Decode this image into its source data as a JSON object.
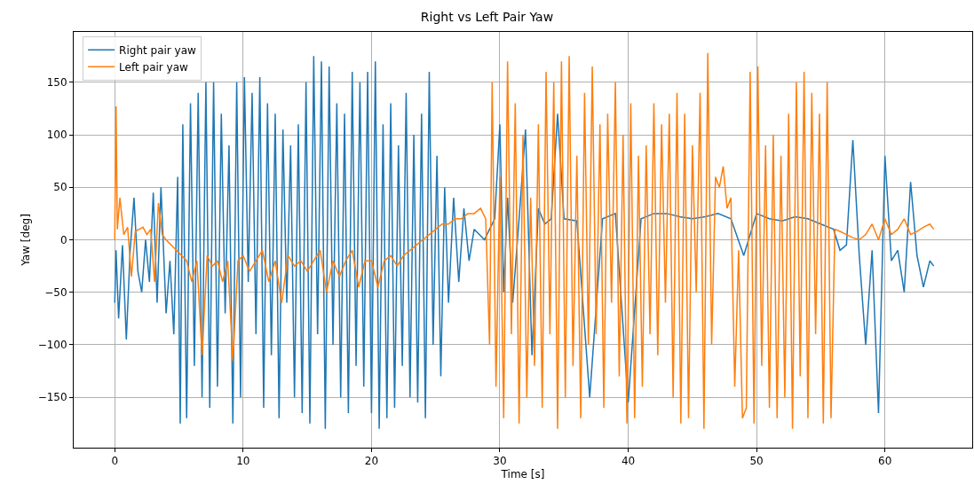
{
  "chart_data": {
    "type": "line",
    "title": "Right vs Left Pair Yaw",
    "xlabel": "Time [s]",
    "ylabel": "Yaw [deg]",
    "xlim": [
      -3.2,
      66.8
    ],
    "xticks": [
      0,
      10,
      20,
      30,
      40,
      50,
      60
    ],
    "ylim": [
      -198,
      198
    ],
    "yticks": [
      {
        "value": -150,
        "label": "−150"
      },
      {
        "value": -100,
        "label": "−100"
      },
      {
        "value": -50,
        "label": "−50"
      },
      0,
      50,
      100,
      150
    ],
    "grid": true,
    "legend": "top left",
    "marker": "none",
    "line_style": "solid",
    "series": [
      {
        "name": "Right pair yaw",
        "color": "#1f77b4",
        "x": [
          0,
          0.1,
          0.3,
          0.6,
          0.9,
          1.2,
          1.5,
          1.8,
          2.1,
          2.4,
          2.7,
          3.0,
          3.3,
          3.6,
          4.0,
          4.3,
          4.6,
          4.9,
          5.1,
          5.3,
          5.6,
          5.9,
          6.2,
          6.5,
          6.8,
          7.1,
          7.4,
          7.7,
          8.0,
          8.3,
          8.6,
          8.9,
          9.2,
          9.5,
          9.8,
          10.1,
          10.4,
          10.7,
          11.0,
          11.3,
          11.6,
          11.9,
          12.2,
          12.5,
          12.8,
          13.1,
          13.4,
          13.7,
          14.0,
          14.3,
          14.6,
          14.9,
          15.2,
          15.5,
          15.8,
          16.1,
          16.4,
          16.7,
          17.0,
          17.3,
          17.6,
          17.9,
          18.2,
          18.5,
          18.8,
          19.1,
          19.4,
          19.7,
          20.0,
          20.3,
          20.6,
          20.9,
          21.2,
          21.5,
          21.8,
          22.1,
          22.4,
          22.7,
          23.0,
          23.3,
          23.6,
          23.9,
          24.2,
          24.5,
          24.8,
          25.1,
          25.4,
          25.7,
          26.0,
          26.4,
          26.8,
          27.2,
          27.6,
          28.0,
          28.4,
          28.8,
          29.2,
          29.6,
          30.0,
          30.3,
          30.6,
          31.0,
          31.5,
          32.0,
          32.5,
          33.0,
          33.5,
          34.0,
          34.5,
          35.0,
          36.0,
          37.0,
          38.0,
          39.0,
          40.0,
          41.0,
          42.0,
          43.0,
          44.0,
          45.0,
          46.0,
          47.0,
          48.0,
          49.0,
          50.0,
          51.0,
          52.0,
          53.0,
          54.0,
          55.0,
          56.0,
          56.5,
          57.0,
          57.5,
          58.0,
          58.5,
          59.0,
          59.5,
          60.0,
          60.5,
          61.0,
          61.5,
          62.0,
          62.5,
          63.0,
          63.5,
          63.8
        ],
        "values": [
          -60,
          -10,
          -75,
          -5,
          -95,
          -10,
          40,
          -30,
          -50,
          0,
          -40,
          45,
          -60,
          50,
          -70,
          -20,
          -90,
          60,
          -175,
          110,
          -170,
          130,
          -120,
          140,
          -150,
          150,
          -160,
          150,
          -140,
          120,
          -70,
          90,
          -175,
          150,
          -150,
          155,
          -40,
          140,
          -90,
          155,
          -160,
          130,
          -110,
          120,
          -170,
          105,
          -60,
          90,
          -150,
          110,
          -165,
          150,
          -175,
          175,
          -90,
          170,
          -180,
          165,
          -100,
          130,
          -150,
          120,
          -165,
          160,
          -120,
          150,
          -140,
          160,
          -165,
          170,
          -180,
          110,
          -170,
          130,
          -160,
          90,
          -120,
          140,
          -150,
          100,
          -155,
          120,
          -170,
          160,
          -100,
          80,
          -130,
          50,
          -60,
          40,
          -40,
          30,
          -20,
          10,
          5,
          0,
          10,
          20,
          110,
          -50,
          40,
          -60,
          20,
          105,
          -110,
          30,
          15,
          20,
          120,
          20,
          18,
          -150,
          20,
          25,
          -155,
          20,
          25,
          25,
          22,
          20,
          22,
          25,
          20,
          -15,
          25,
          20,
          18,
          22,
          20,
          15,
          10,
          -10,
          -5,
          95,
          -15,
          -100,
          -10,
          -165,
          80,
          -20,
          -10,
          -50,
          55,
          -15,
          -45,
          -20,
          -25
        ]
      },
      {
        "name": "Left pair yaw",
        "color": "#ff7f0e",
        "x": [
          0,
          0.1,
          0.2,
          0.4,
          0.7,
          1.0,
          1.3,
          1.6,
          1.9,
          2.2,
          2.5,
          2.8,
          3.1,
          3.4,
          3.7,
          4.0,
          4.4,
          4.8,
          5.2,
          5.6,
          6.0,
          6.4,
          6.8,
          7.2,
          7.6,
          8.0,
          8.4,
          8.8,
          9.2,
          9.6,
          10.0,
          10.5,
          11.0,
          11.5,
          12.0,
          12.5,
          13.0,
          13.5,
          14.0,
          14.5,
          15.0,
          15.5,
          16.0,
          16.5,
          17.0,
          17.5,
          18.0,
          18.5,
          19.0,
          19.5,
          20.0,
          20.5,
          21.0,
          21.5,
          22.0,
          22.5,
          23.0,
          23.5,
          24.0,
          24.5,
          25.0,
          25.5,
          26.0,
          26.5,
          27.0,
          27.5,
          28.0,
          28.5,
          28.9,
          29.2,
          29.4,
          29.7,
          30.0,
          30.3,
          30.6,
          30.9,
          31.2,
          31.5,
          31.8,
          32.1,
          32.4,
          32.7,
          33.0,
          33.3,
          33.6,
          33.9,
          34.2,
          34.5,
          34.8,
          35.1,
          35.4,
          35.7,
          36.0,
          36.3,
          36.6,
          36.9,
          37.2,
          37.5,
          37.8,
          38.1,
          38.4,
          38.7,
          39.0,
          39.3,
          39.6,
          39.9,
          40.2,
          40.5,
          40.8,
          41.1,
          41.4,
          41.7,
          42.0,
          42.3,
          42.6,
          42.9,
          43.2,
          43.5,
          43.8,
          44.1,
          44.4,
          44.7,
          45.0,
          45.3,
          45.6,
          45.9,
          46.2,
          46.5,
          46.8,
          47.1,
          47.4,
          47.7,
          48.0,
          48.3,
          48.6,
          48.9,
          49.2,
          49.5,
          49.8,
          50.1,
          50.4,
          50.7,
          51.0,
          51.3,
          51.6,
          51.9,
          52.2,
          52.5,
          52.8,
          53.1,
          53.4,
          53.7,
          54.0,
          54.3,
          54.6,
          54.9,
          55.2,
          55.5,
          55.8,
          56.1,
          56.5,
          57.0,
          57.5,
          58.0,
          58.5,
          59.0,
          59.5,
          60.0,
          60.5,
          61.0,
          61.5,
          62.0,
          62.5,
          63.0,
          63.5,
          63.8
        ],
        "values": [
          0,
          127,
          10,
          40,
          5,
          12,
          -35,
          8,
          10,
          12,
          5,
          10,
          -40,
          35,
          5,
          0,
          -5,
          -10,
          -15,
          -20,
          -40,
          -20,
          -110,
          -15,
          -25,
          -20,
          -40,
          -20,
          -115,
          -20,
          -15,
          -30,
          -20,
          -10,
          -40,
          -20,
          -60,
          -15,
          -25,
          -20,
          -30,
          -20,
          -10,
          -50,
          -20,
          -35,
          -20,
          -10,
          -45,
          -20,
          -20,
          -45,
          -20,
          -15,
          -25,
          -15,
          -10,
          -5,
          0,
          5,
          10,
          15,
          15,
          20,
          20,
          25,
          25,
          30,
          20,
          -100,
          150,
          -140,
          60,
          -170,
          170,
          -90,
          130,
          -175,
          100,
          -150,
          40,
          -120,
          110,
          -160,
          160,
          -90,
          150,
          -180,
          170,
          -150,
          175,
          -120,
          80,
          -170,
          140,
          -100,
          165,
          -90,
          110,
          -160,
          120,
          -60,
          150,
          -130,
          100,
          -175,
          130,
          -170,
          80,
          -140,
          90,
          -90,
          130,
          -110,
          110,
          -60,
          120,
          -150,
          140,
          -175,
          120,
          -170,
          90,
          -50,
          140,
          -180,
          178,
          -100,
          60,
          50,
          70,
          30,
          40,
          -140,
          -10,
          -170,
          -160,
          160,
          -175,
          165,
          -120,
          90,
          -160,
          100,
          -170,
          80,
          -150,
          120,
          -180,
          150,
          -130,
          160,
          -170,
          140,
          -90,
          120,
          -175,
          150,
          -170,
          10,
          8,
          5,
          2,
          0,
          5,
          15,
          0,
          20,
          5,
          10,
          20,
          5,
          8,
          12,
          15,
          10
        ]
      }
    ]
  }
}
